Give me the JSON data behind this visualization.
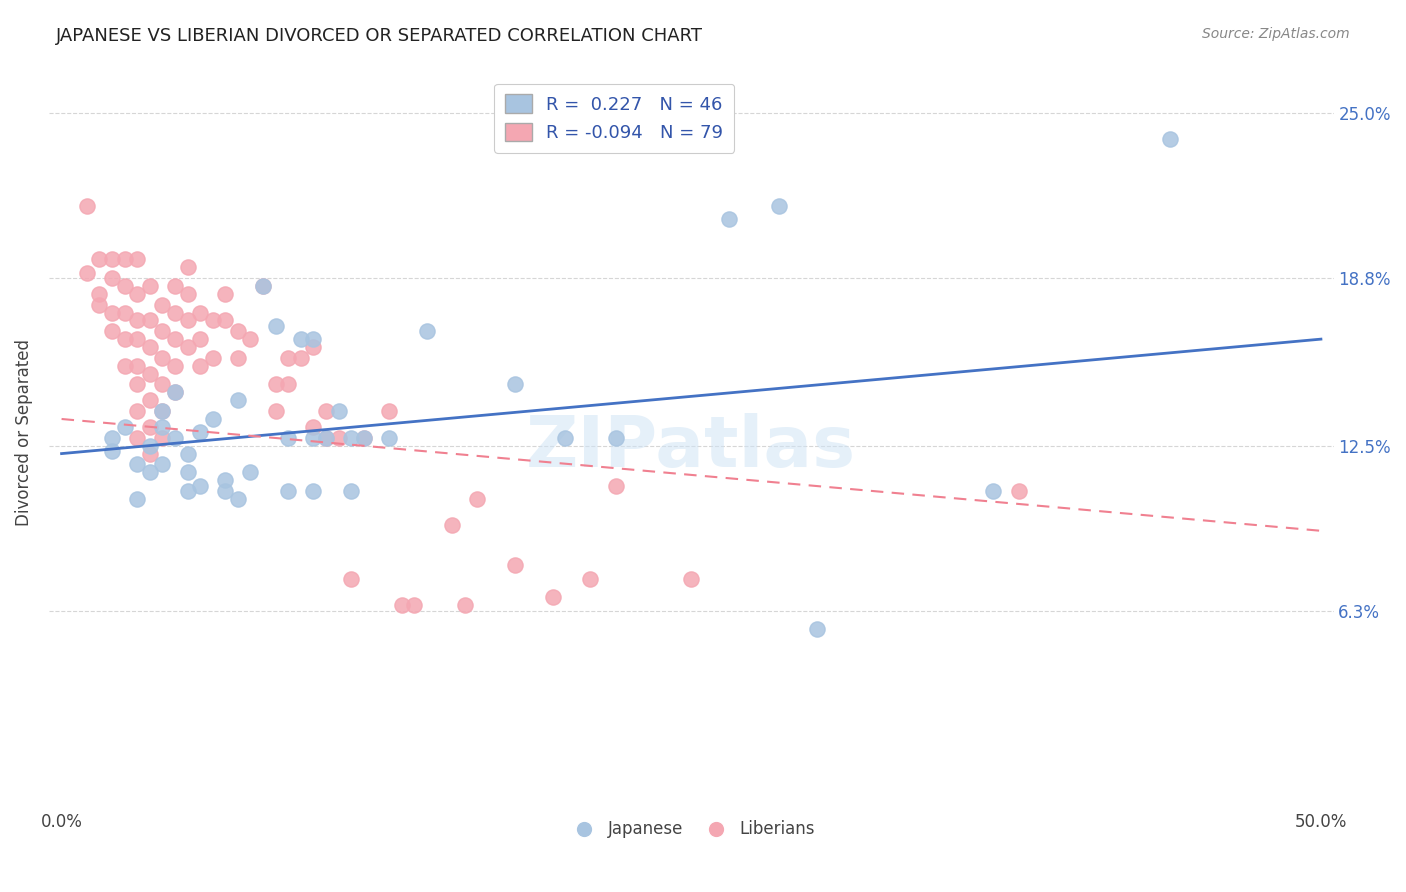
{
  "title": "JAPANESE VS LIBERIAN DIVORCED OR SEPARATED CORRELATION CHART",
  "source": "Source: ZipAtlas.com",
  "ylabel": "Divorced or Separated",
  "ytick_labels": [
    "25.0%",
    "18.8%",
    "12.5%",
    "6.3%"
  ],
  "ytick_values": [
    0.25,
    0.188,
    0.125,
    0.063
  ],
  "xlim": [
    0.0,
    0.5
  ],
  "ylim": [
    -0.01,
    0.27
  ],
  "watermark": "ZIPatlas",
  "japanese_color": "#a8c4e0",
  "liberian_color": "#f4a7b2",
  "japanese_line_color": "#4472c4",
  "liberian_line_color": "#f08090",
  "jp_line": [
    [
      0.0,
      0.122
    ],
    [
      0.5,
      0.165
    ]
  ],
  "lb_line": [
    [
      0.0,
      0.135
    ],
    [
      0.5,
      0.093
    ]
  ],
  "japanese_points": [
    [
      0.02,
      0.128
    ],
    [
      0.02,
      0.123
    ],
    [
      0.025,
      0.132
    ],
    [
      0.03,
      0.118
    ],
    [
      0.03,
      0.105
    ],
    [
      0.035,
      0.125
    ],
    [
      0.035,
      0.115
    ],
    [
      0.04,
      0.132
    ],
    [
      0.04,
      0.138
    ],
    [
      0.04,
      0.118
    ],
    [
      0.045,
      0.145
    ],
    [
      0.045,
      0.128
    ],
    [
      0.05,
      0.122
    ],
    [
      0.05,
      0.115
    ],
    [
      0.05,
      0.108
    ],
    [
      0.055,
      0.13
    ],
    [
      0.055,
      0.11
    ],
    [
      0.06,
      0.135
    ],
    [
      0.065,
      0.112
    ],
    [
      0.065,
      0.108
    ],
    [
      0.07,
      0.142
    ],
    [
      0.07,
      0.105
    ],
    [
      0.075,
      0.115
    ],
    [
      0.08,
      0.185
    ],
    [
      0.085,
      0.17
    ],
    [
      0.09,
      0.128
    ],
    [
      0.09,
      0.108
    ],
    [
      0.095,
      0.165
    ],
    [
      0.1,
      0.165
    ],
    [
      0.1,
      0.128
    ],
    [
      0.1,
      0.108
    ],
    [
      0.105,
      0.128
    ],
    [
      0.11,
      0.138
    ],
    [
      0.115,
      0.128
    ],
    [
      0.115,
      0.108
    ],
    [
      0.12,
      0.128
    ],
    [
      0.13,
      0.128
    ],
    [
      0.145,
      0.168
    ],
    [
      0.18,
      0.148
    ],
    [
      0.2,
      0.128
    ],
    [
      0.22,
      0.128
    ],
    [
      0.265,
      0.21
    ],
    [
      0.285,
      0.215
    ],
    [
      0.3,
      0.056
    ],
    [
      0.37,
      0.108
    ],
    [
      0.44,
      0.24
    ]
  ],
  "liberian_points": [
    [
      0.01,
      0.215
    ],
    [
      0.01,
      0.19
    ],
    [
      0.015,
      0.195
    ],
    [
      0.015,
      0.182
    ],
    [
      0.015,
      0.178
    ],
    [
      0.02,
      0.195
    ],
    [
      0.02,
      0.188
    ],
    [
      0.02,
      0.175
    ],
    [
      0.02,
      0.168
    ],
    [
      0.025,
      0.195
    ],
    [
      0.025,
      0.185
    ],
    [
      0.025,
      0.175
    ],
    [
      0.025,
      0.165
    ],
    [
      0.025,
      0.155
    ],
    [
      0.03,
      0.195
    ],
    [
      0.03,
      0.182
    ],
    [
      0.03,
      0.172
    ],
    [
      0.03,
      0.165
    ],
    [
      0.03,
      0.155
    ],
    [
      0.03,
      0.148
    ],
    [
      0.03,
      0.138
    ],
    [
      0.03,
      0.128
    ],
    [
      0.035,
      0.185
    ],
    [
      0.035,
      0.172
    ],
    [
      0.035,
      0.162
    ],
    [
      0.035,
      0.152
    ],
    [
      0.035,
      0.142
    ],
    [
      0.035,
      0.132
    ],
    [
      0.035,
      0.122
    ],
    [
      0.04,
      0.178
    ],
    [
      0.04,
      0.168
    ],
    [
      0.04,
      0.158
    ],
    [
      0.04,
      0.148
    ],
    [
      0.04,
      0.138
    ],
    [
      0.04,
      0.128
    ],
    [
      0.045,
      0.185
    ],
    [
      0.045,
      0.175
    ],
    [
      0.045,
      0.165
    ],
    [
      0.045,
      0.155
    ],
    [
      0.045,
      0.145
    ],
    [
      0.05,
      0.192
    ],
    [
      0.05,
      0.182
    ],
    [
      0.05,
      0.172
    ],
    [
      0.05,
      0.162
    ],
    [
      0.055,
      0.175
    ],
    [
      0.055,
      0.165
    ],
    [
      0.055,
      0.155
    ],
    [
      0.06,
      0.172
    ],
    [
      0.06,
      0.158
    ],
    [
      0.065,
      0.182
    ],
    [
      0.065,
      0.172
    ],
    [
      0.07,
      0.168
    ],
    [
      0.07,
      0.158
    ],
    [
      0.075,
      0.165
    ],
    [
      0.08,
      0.185
    ],
    [
      0.085,
      0.148
    ],
    [
      0.085,
      0.138
    ],
    [
      0.09,
      0.158
    ],
    [
      0.09,
      0.148
    ],
    [
      0.095,
      0.158
    ],
    [
      0.1,
      0.162
    ],
    [
      0.1,
      0.132
    ],
    [
      0.105,
      0.128
    ],
    [
      0.105,
      0.138
    ],
    [
      0.11,
      0.128
    ],
    [
      0.115,
      0.075
    ],
    [
      0.12,
      0.128
    ],
    [
      0.13,
      0.138
    ],
    [
      0.135,
      0.065
    ],
    [
      0.14,
      0.065
    ],
    [
      0.155,
      0.095
    ],
    [
      0.16,
      0.065
    ],
    [
      0.165,
      0.105
    ],
    [
      0.18,
      0.08
    ],
    [
      0.195,
      0.068
    ],
    [
      0.21,
      0.075
    ],
    [
      0.22,
      0.11
    ],
    [
      0.25,
      0.075
    ],
    [
      0.38,
      0.108
    ]
  ]
}
